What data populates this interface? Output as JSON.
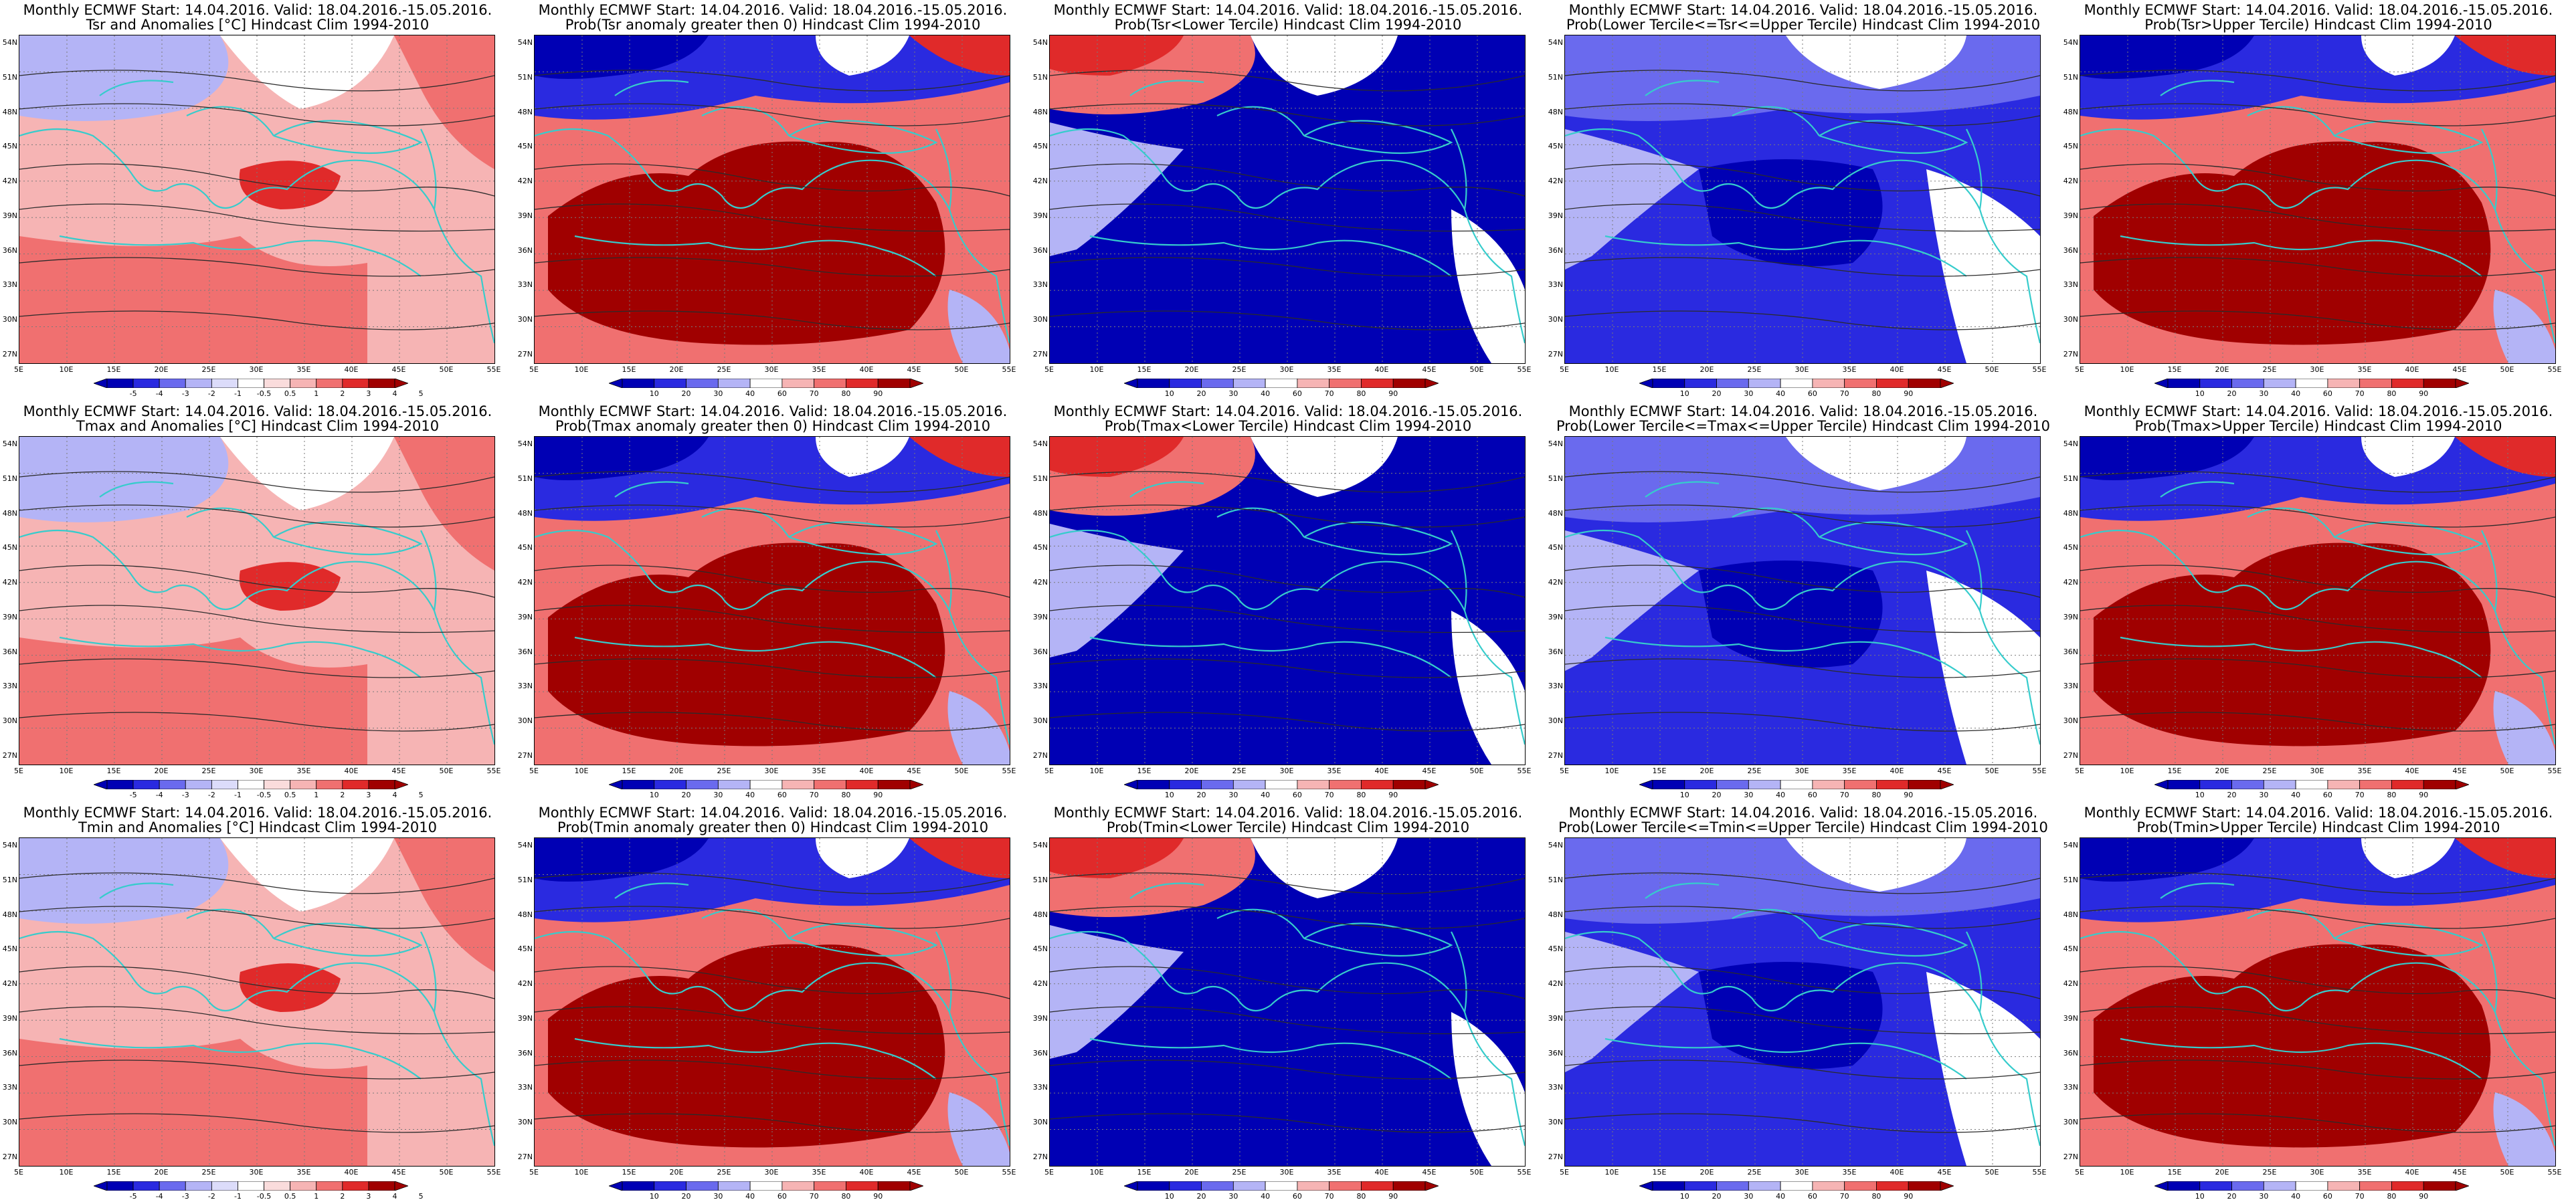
{
  "colors": {
    "blue_dark": "#0000b4",
    "blue": "#2a2ae0",
    "blue_mid": "#6a6aee",
    "blue_light": "#b4b4f6",
    "white": "#ffffff",
    "red_light": "#f6b4b4",
    "red_mid": "#f07070",
    "red": "#e02a2a",
    "red_dark": "#a00000",
    "coast": "#36cccc",
    "contour": "#2b2b2b"
  },
  "axes": {
    "lat_labels": [
      "54N",
      "51N",
      "48N",
      "45N",
      "42N",
      "39N",
      "36N",
      "33N",
      "30N",
      "27N"
    ],
    "lon_labels": [
      "5E",
      "10E",
      "15E",
      "20E",
      "25E",
      "30E",
      "35E",
      "40E",
      "45E",
      "50E",
      "55E"
    ]
  },
  "colorbars": {
    "anomaly": [
      "-5",
      "-4",
      "-3",
      "-2",
      "-1",
      "-0.5",
      "0.5",
      "1",
      "2",
      "3",
      "4",
      "5"
    ],
    "probability": [
      "10",
      "20",
      "30",
      "40",
      "60",
      "70",
      "80",
      "90"
    ]
  },
  "panels": [
    {
      "title1": "Monthly ECMWF Start: 14.04.2016. Valid: 18.04.2016.-15.05.2016.",
      "title2": "Tsr and Anomalies [°C] Hindcast Clim 1994-2010",
      "kind": "anomaly",
      "field": "anom_warm"
    },
    {
      "title1": "Monthly ECMWF Start: 14.04.2016. Valid: 18.04.2016.-15.05.2016.",
      "title2": "Prob(Tsr anomaly greater then 0) Hindcast Clim 1994-2010",
      "kind": "probability",
      "field": "prob_high_south"
    },
    {
      "title1": "Monthly ECMWF Start: 14.04.2016. Valid: 18.04.2016.-15.05.2016.",
      "title2": "Prob(Tsr<Lower Tercile) Hindcast Clim 1994-2010",
      "kind": "probability",
      "field": "prob_low_south"
    },
    {
      "title1": "Monthly ECMWF Start: 14.04.2016. Valid: 18.04.2016.-15.05.2016.",
      "title2": "Prob(Lower Tercile<=Tsr<=Upper Tercile) Hindcast Clim 1994-2010",
      "kind": "probability",
      "field": "prob_mid"
    },
    {
      "title1": "Monthly ECMWF Start: 14.04.2016. Valid: 18.04.2016.-15.05.2016.",
      "title2": "Prob(Tsr>Upper Tercile) Hindcast Clim 1994-2010",
      "kind": "probability",
      "field": "prob_high_south"
    },
    {
      "title1": "Monthly ECMWF Start: 14.04.2016. Valid: 18.04.2016.-15.05.2016.",
      "title2": "Tmax and Anomalies [°C] Hindcast Clim 1994-2010",
      "kind": "anomaly",
      "field": "anom_warm"
    },
    {
      "title1": "Monthly ECMWF Start: 14.04.2016. Valid: 18.04.2016.-15.05.2016.",
      "title2": "Prob(Tmax anomaly greater then 0) Hindcast Clim 1994-2010",
      "kind": "probability",
      "field": "prob_high_south"
    },
    {
      "title1": "Monthly ECMWF Start: 14.04.2016. Valid: 18.04.2016.-15.05.2016.",
      "title2": "Prob(Tmax<Lower Tercile) Hindcast Clim 1994-2010",
      "kind": "probability",
      "field": "prob_low_south"
    },
    {
      "title1": "Monthly ECMWF Start: 14.04.2016. Valid: 18.04.2016.-15.05.2016.",
      "title2": "Prob(Lower Tercile<=Tmax<=Upper Tercile) Hindcast Clim 1994-2010",
      "kind": "probability",
      "field": "prob_mid"
    },
    {
      "title1": "Monthly ECMWF Start: 14.04.2016. Valid: 18.04.2016.-15.05.2016.",
      "title2": "Prob(Tmax>Upper Tercile) Hindcast Clim 1994-2010",
      "kind": "probability",
      "field": "prob_high_south"
    },
    {
      "title1": "Monthly ECMWF Start: 14.04.2016. Valid: 18.04.2016.-15.05.2016.",
      "title2": "Tmin and Anomalies [°C] Hindcast Clim 1994-2010",
      "kind": "anomaly",
      "field": "anom_warm"
    },
    {
      "title1": "Monthly ECMWF Start: 14.04.2016. Valid: 18.04.2016.-15.05.2016.",
      "title2": "Prob(Tmin anomaly greater then 0) Hindcast Clim 1994-2010",
      "kind": "probability",
      "field": "prob_high_south"
    },
    {
      "title1": "Monthly ECMWF Start: 14.04.2016. Valid: 18.04.2016.-15.05.2016.",
      "title2": "Prob(Tmin<Lower Tercile) Hindcast Clim 1994-2010",
      "kind": "probability",
      "field": "prob_low_south"
    },
    {
      "title1": "Monthly ECMWF Start: 14.04.2016. Valid: 18.04.2016.-15.05.2016.",
      "title2": "Prob(Lower Tercile<=Tmin<=Upper Tercile) Hindcast Clim 1994-2010",
      "kind": "probability",
      "field": "prob_mid"
    },
    {
      "title1": "Monthly ECMWF Start: 14.04.2016. Valid: 18.04.2016.-15.05.2016.",
      "title2": "Prob(Tmin>Upper Tercile) Hindcast Clim 1994-2010",
      "kind": "probability",
      "field": "prob_high_south"
    }
  ]
}
